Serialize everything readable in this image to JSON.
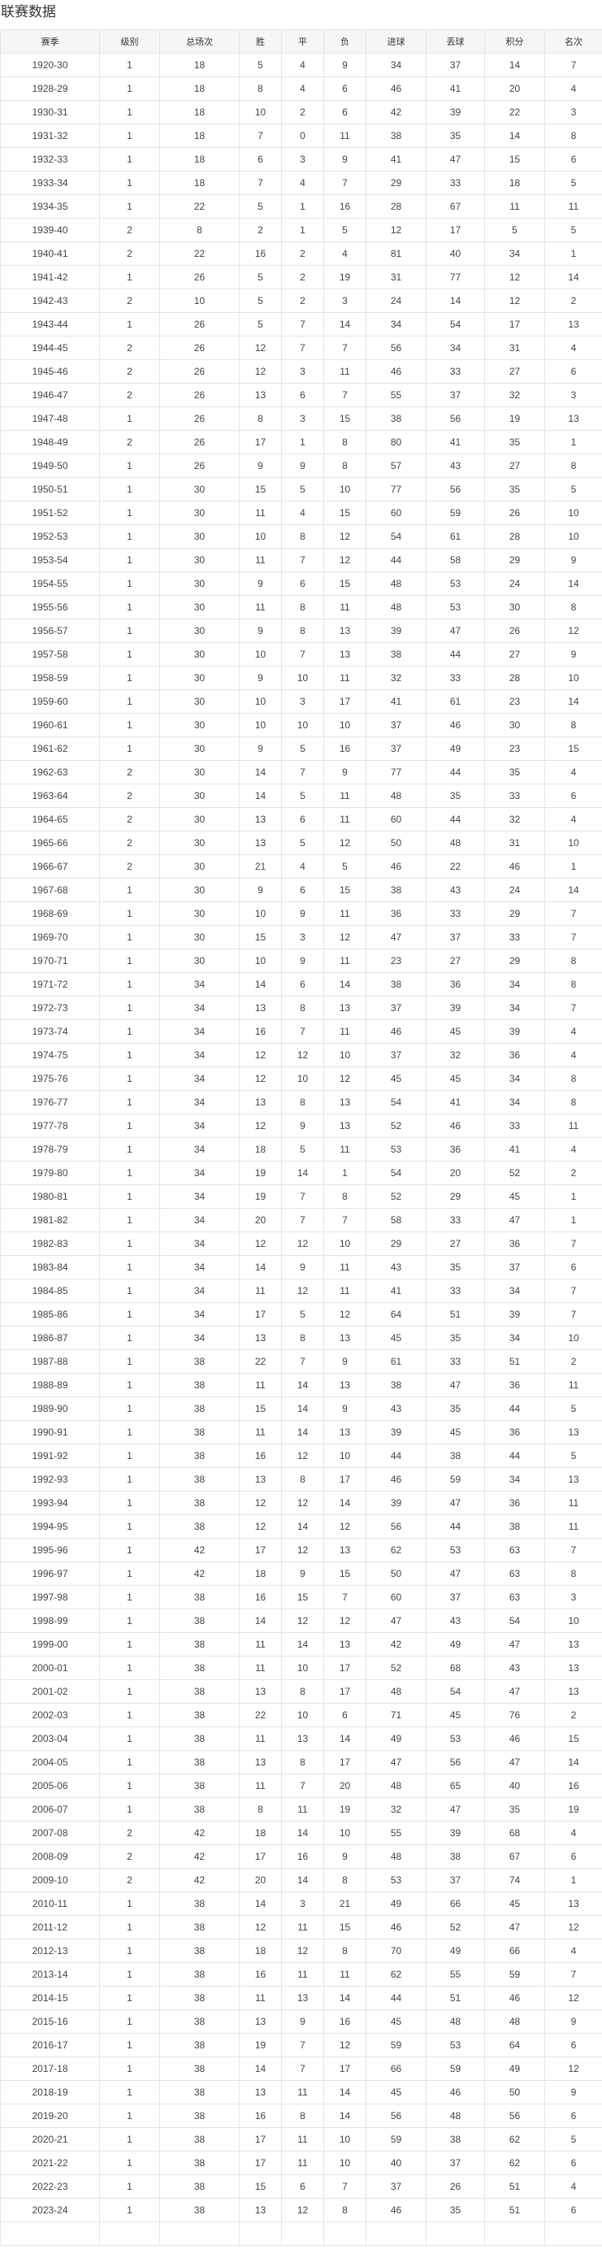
{
  "title": "联赛数据",
  "headers": [
    "赛季",
    "级别",
    "总场次",
    "胜",
    "平",
    "负",
    "进球",
    "丢球",
    "积分",
    "名次"
  ],
  "rows": [
    [
      "1920-30",
      "1",
      "18",
      "5",
      "4",
      "9",
      "34",
      "37",
      "14",
      "7"
    ],
    [
      "1928-29",
      "1",
      "18",
      "8",
      "4",
      "6",
      "46",
      "41",
      "20",
      "4"
    ],
    [
      "1930-31",
      "1",
      "18",
      "10",
      "2",
      "6",
      "42",
      "39",
      "22",
      "3"
    ],
    [
      "1931-32",
      "1",
      "18",
      "7",
      "0",
      "11",
      "38",
      "35",
      "14",
      "8"
    ],
    [
      "1932-33",
      "1",
      "18",
      "6",
      "3",
      "9",
      "41",
      "47",
      "15",
      "6"
    ],
    [
      "1933-34",
      "1",
      "18",
      "7",
      "4",
      "7",
      "29",
      "33",
      "18",
      "5"
    ],
    [
      "1934-35",
      "1",
      "22",
      "5",
      "1",
      "16",
      "28",
      "67",
      "11",
      "11"
    ],
    [
      "1939-40",
      "2",
      "8",
      "2",
      "1",
      "5",
      "12",
      "17",
      "5",
      "5"
    ],
    [
      "1940-41",
      "2",
      "22",
      "16",
      "2",
      "4",
      "81",
      "40",
      "34",
      "1"
    ],
    [
      "1941-42",
      "1",
      "26",
      "5",
      "2",
      "19",
      "31",
      "77",
      "12",
      "14"
    ],
    [
      "1942-43",
      "2",
      "10",
      "5",
      "2",
      "3",
      "24",
      "14",
      "12",
      "2"
    ],
    [
      "1943-44",
      "1",
      "26",
      "5",
      "7",
      "14",
      "34",
      "54",
      "17",
      "13"
    ],
    [
      "1944-45",
      "2",
      "26",
      "12",
      "7",
      "7",
      "56",
      "34",
      "31",
      "4"
    ],
    [
      "1945-46",
      "2",
      "26",
      "12",
      "3",
      "11",
      "46",
      "33",
      "27",
      "6"
    ],
    [
      "1946-47",
      "2",
      "26",
      "13",
      "6",
      "7",
      "55",
      "37",
      "32",
      "3"
    ],
    [
      "1947-48",
      "1",
      "26",
      "8",
      "3",
      "15",
      "38",
      "56",
      "19",
      "13"
    ],
    [
      "1948-49",
      "2",
      "26",
      "17",
      "1",
      "8",
      "80",
      "41",
      "35",
      "1"
    ],
    [
      "1949-50",
      "1",
      "26",
      "9",
      "9",
      "8",
      "57",
      "43",
      "27",
      "8"
    ],
    [
      "1950-51",
      "1",
      "30",
      "15",
      "5",
      "10",
      "77",
      "56",
      "35",
      "5"
    ],
    [
      "1951-52",
      "1",
      "30",
      "11",
      "4",
      "15",
      "60",
      "59",
      "26",
      "10"
    ],
    [
      "1952-53",
      "1",
      "30",
      "10",
      "8",
      "12",
      "54",
      "61",
      "28",
      "10"
    ],
    [
      "1953-54",
      "1",
      "30",
      "11",
      "7",
      "12",
      "44",
      "58",
      "29",
      "9"
    ],
    [
      "1954-55",
      "1",
      "30",
      "9",
      "6",
      "15",
      "48",
      "53",
      "24",
      "14"
    ],
    [
      "1955-56",
      "1",
      "30",
      "11",
      "8",
      "11",
      "48",
      "53",
      "30",
      "8"
    ],
    [
      "1956-57",
      "1",
      "30",
      "9",
      "8",
      "13",
      "39",
      "47",
      "26",
      "12"
    ],
    [
      "1957-58",
      "1",
      "30",
      "10",
      "7",
      "13",
      "38",
      "44",
      "27",
      "9"
    ],
    [
      "1958-59",
      "1",
      "30",
      "9",
      "10",
      "11",
      "32",
      "33",
      "28",
      "10"
    ],
    [
      "1959-60",
      "1",
      "30",
      "10",
      "3",
      "17",
      "41",
      "61",
      "23",
      "14"
    ],
    [
      "1960-61",
      "1",
      "30",
      "10",
      "10",
      "10",
      "37",
      "46",
      "30",
      "8"
    ],
    [
      "1961-62",
      "1",
      "30",
      "9",
      "5",
      "16",
      "37",
      "49",
      "23",
      "15"
    ],
    [
      "1962-63",
      "2",
      "30",
      "14",
      "7",
      "9",
      "77",
      "44",
      "35",
      "4"
    ],
    [
      "1963-64",
      "2",
      "30",
      "14",
      "5",
      "11",
      "48",
      "35",
      "33",
      "6"
    ],
    [
      "1964-65",
      "2",
      "30",
      "13",
      "6",
      "11",
      "60",
      "44",
      "32",
      "4"
    ],
    [
      "1965-66",
      "2",
      "30",
      "13",
      "5",
      "12",
      "50",
      "48",
      "31",
      "10"
    ],
    [
      "1966-67",
      "2",
      "30",
      "21",
      "4",
      "5",
      "46",
      "22",
      "46",
      "1"
    ],
    [
      "1967-68",
      "1",
      "30",
      "9",
      "6",
      "15",
      "38",
      "43",
      "24",
      "14"
    ],
    [
      "1968-69",
      "1",
      "30",
      "10",
      "9",
      "11",
      "36",
      "33",
      "29",
      "7"
    ],
    [
      "1969-70",
      "1",
      "30",
      "15",
      "3",
      "12",
      "47",
      "37",
      "33",
      "7"
    ],
    [
      "1970-71",
      "1",
      "30",
      "10",
      "9",
      "11",
      "23",
      "27",
      "29",
      "8"
    ],
    [
      "1971-72",
      "1",
      "34",
      "14",
      "6",
      "14",
      "38",
      "36",
      "34",
      "8"
    ],
    [
      "1972-73",
      "1",
      "34",
      "13",
      "8",
      "13",
      "37",
      "39",
      "34",
      "7"
    ],
    [
      "1973-74",
      "1",
      "34",
      "16",
      "7",
      "11",
      "46",
      "45",
      "39",
      "4"
    ],
    [
      "1974-75",
      "1",
      "34",
      "12",
      "12",
      "10",
      "37",
      "32",
      "36",
      "4"
    ],
    [
      "1975-76",
      "1",
      "34",
      "12",
      "10",
      "12",
      "45",
      "45",
      "34",
      "8"
    ],
    [
      "1976-77",
      "1",
      "34",
      "13",
      "8",
      "13",
      "54",
      "41",
      "34",
      "8"
    ],
    [
      "1977-78",
      "1",
      "34",
      "12",
      "9",
      "13",
      "52",
      "46",
      "33",
      "11"
    ],
    [
      "1978-79",
      "1",
      "34",
      "18",
      "5",
      "11",
      "53",
      "36",
      "41",
      "4"
    ],
    [
      "1979-80",
      "1",
      "34",
      "19",
      "14",
      "1",
      "54",
      "20",
      "52",
      "2"
    ],
    [
      "1980-81",
      "1",
      "34",
      "19",
      "7",
      "8",
      "52",
      "29",
      "45",
      "1"
    ],
    [
      "1981-82",
      "1",
      "34",
      "20",
      "7",
      "7",
      "58",
      "33",
      "47",
      "1"
    ],
    [
      "1982-83",
      "1",
      "34",
      "12",
      "12",
      "10",
      "29",
      "27",
      "36",
      "7"
    ],
    [
      "1983-84",
      "1",
      "34",
      "14",
      "9",
      "11",
      "43",
      "35",
      "37",
      "6"
    ],
    [
      "1984-85",
      "1",
      "34",
      "11",
      "12",
      "11",
      "41",
      "33",
      "34",
      "7"
    ],
    [
      "1985-86",
      "1",
      "34",
      "17",
      "5",
      "12",
      "64",
      "51",
      "39",
      "7"
    ],
    [
      "1986-87",
      "1",
      "34",
      "13",
      "8",
      "13",
      "45",
      "35",
      "34",
      "10"
    ],
    [
      "1987-88",
      "1",
      "38",
      "22",
      "7",
      "9",
      "61",
      "33",
      "51",
      "2"
    ],
    [
      "1988-89",
      "1",
      "38",
      "11",
      "14",
      "13",
      "38",
      "47",
      "36",
      "11"
    ],
    [
      "1989-90",
      "1",
      "38",
      "15",
      "14",
      "9",
      "43",
      "35",
      "44",
      "5"
    ],
    [
      "1990-91",
      "1",
      "38",
      "11",
      "14",
      "13",
      "39",
      "45",
      "36",
      "13"
    ],
    [
      "1991-92",
      "1",
      "38",
      "16",
      "12",
      "10",
      "44",
      "38",
      "44",
      "5"
    ],
    [
      "1992-93",
      "1",
      "38",
      "13",
      "8",
      "17",
      "46",
      "59",
      "34",
      "13"
    ],
    [
      "1993-94",
      "1",
      "38",
      "12",
      "12",
      "14",
      "39",
      "47",
      "36",
      "11"
    ],
    [
      "1994-95",
      "1",
      "38",
      "12",
      "14",
      "12",
      "56",
      "44",
      "38",
      "11"
    ],
    [
      "1995-96",
      "1",
      "42",
      "17",
      "12",
      "13",
      "62",
      "53",
      "63",
      "7"
    ],
    [
      "1996-97",
      "1",
      "42",
      "18",
      "9",
      "15",
      "50",
      "47",
      "63",
      "8"
    ],
    [
      "1997-98",
      "1",
      "38",
      "16",
      "15",
      "7",
      "60",
      "37",
      "63",
      "3"
    ],
    [
      "1998-99",
      "1",
      "38",
      "14",
      "12",
      "12",
      "47",
      "43",
      "54",
      "10"
    ],
    [
      "1999-00",
      "1",
      "38",
      "11",
      "14",
      "13",
      "42",
      "49",
      "47",
      "13"
    ],
    [
      "2000-01",
      "1",
      "38",
      "11",
      "10",
      "17",
      "52",
      "68",
      "43",
      "13"
    ],
    [
      "2001-02",
      "1",
      "38",
      "13",
      "8",
      "17",
      "48",
      "54",
      "47",
      "13"
    ],
    [
      "2002-03",
      "1",
      "38",
      "22",
      "10",
      "6",
      "71",
      "45",
      "76",
      "2"
    ],
    [
      "2003-04",
      "1",
      "38",
      "11",
      "13",
      "14",
      "49",
      "53",
      "46",
      "15"
    ],
    [
      "2004-05",
      "1",
      "38",
      "13",
      "8",
      "17",
      "47",
      "56",
      "47",
      "14"
    ],
    [
      "2005-06",
      "1",
      "38",
      "11",
      "7",
      "20",
      "48",
      "65",
      "40",
      "16"
    ],
    [
      "2006-07",
      "1",
      "38",
      "8",
      "11",
      "19",
      "32",
      "47",
      "35",
      "19"
    ],
    [
      "2007-08",
      "2",
      "42",
      "18",
      "14",
      "10",
      "55",
      "39",
      "68",
      "4"
    ],
    [
      "2008-09",
      "2",
      "42",
      "17",
      "16",
      "9",
      "48",
      "38",
      "67",
      "6"
    ],
    [
      "2009-10",
      "2",
      "42",
      "20",
      "14",
      "8",
      "53",
      "37",
      "74",
      "1"
    ],
    [
      "2010-11",
      "1",
      "38",
      "14",
      "3",
      "21",
      "49",
      "66",
      "45",
      "13"
    ],
    [
      "2011-12",
      "1",
      "38",
      "12",
      "11",
      "15",
      "46",
      "52",
      "47",
      "12"
    ],
    [
      "2012-13",
      "1",
      "38",
      "18",
      "12",
      "8",
      "70",
      "49",
      "66",
      "4"
    ],
    [
      "2013-14",
      "1",
      "38",
      "16",
      "11",
      "11",
      "62",
      "55",
      "59",
      "7"
    ],
    [
      "2014-15",
      "1",
      "38",
      "11",
      "13",
      "14",
      "44",
      "51",
      "46",
      "12"
    ],
    [
      "2015-16",
      "1",
      "38",
      "13",
      "9",
      "16",
      "45",
      "48",
      "48",
      "9"
    ],
    [
      "2016-17",
      "1",
      "38",
      "19",
      "7",
      "12",
      "59",
      "53",
      "64",
      "6"
    ],
    [
      "2017-18",
      "1",
      "38",
      "14",
      "7",
      "17",
      "66",
      "59",
      "49",
      "12"
    ],
    [
      "2018-19",
      "1",
      "38",
      "13",
      "11",
      "14",
      "45",
      "46",
      "50",
      "9"
    ],
    [
      "2019-20",
      "1",
      "38",
      "16",
      "8",
      "14",
      "56",
      "48",
      "56",
      "6"
    ],
    [
      "2020-21",
      "1",
      "38",
      "17",
      "11",
      "10",
      "59",
      "38",
      "62",
      "5"
    ],
    [
      "2021-22",
      "1",
      "38",
      "17",
      "11",
      "10",
      "40",
      "37",
      "62",
      "6"
    ],
    [
      "2022-23",
      "1",
      "38",
      "15",
      "6",
      "7",
      "37",
      "26",
      "51",
      "4"
    ],
    [
      "2023-24",
      "1",
      "38",
      "13",
      "12",
      "8",
      "46",
      "35",
      "51",
      "6"
    ]
  ]
}
